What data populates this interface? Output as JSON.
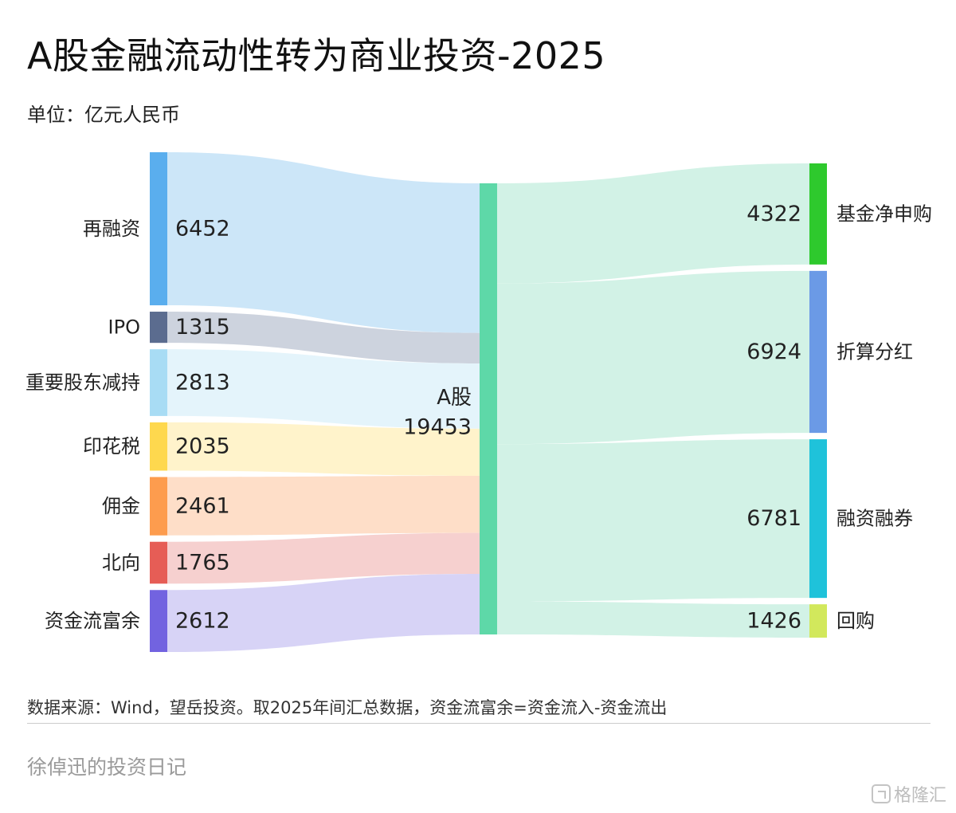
{
  "header": {
    "title": "A股金融流动性转为商业投资-2025",
    "unit": "单位：亿元人民币"
  },
  "footer": {
    "source": "数据来源：Wind，望岳投资。取2025年间汇总数据，资金流富余=资金流入-资金流出",
    "author": "徐倬迅的投资日记",
    "watermark": "格隆汇"
  },
  "chart_data": {
    "type": "sankey",
    "center": {
      "name": "A股",
      "value": 19453,
      "color": "#5ed8a8"
    },
    "sources": [
      {
        "name": "再融资",
        "value": 6452,
        "color": "#5aaeee",
        "flow": "#cce6f8"
      },
      {
        "name": "IPO",
        "value": 1315,
        "color": "#5b6c8f",
        "flow": "#cdd3de"
      },
      {
        "name": "重要股东减持",
        "value": 2813,
        "color": "#a8dcf4",
        "flow": "#e4f4fb"
      },
      {
        "name": "印花税",
        "value": 2035,
        "color": "#fed84e",
        "flow": "#fff3cb"
      },
      {
        "name": "佣金",
        "value": 2461,
        "color": "#fd9c4e",
        "flow": "#fedec8"
      },
      {
        "name": "北向",
        "value": 1765,
        "color": "#e65d56",
        "flow": "#f6d0cf"
      },
      {
        "name": "资金流富余",
        "value": 2612,
        "color": "#7263e0",
        "flow": "#d7d3f6"
      }
    ],
    "targets": [
      {
        "name": "基金净申购",
        "value": 4322,
        "color": "#2ec92d",
        "flow": "#d2f2e6"
      },
      {
        "name": "折算分红",
        "value": 6924,
        "color": "#6b9ae6",
        "flow": "#d2f2e6"
      },
      {
        "name": "融资融券",
        "value": 6781,
        "color": "#1fc2da",
        "flow": "#d2f2e6"
      },
      {
        "name": "回购",
        "value": 1426,
        "color": "#d2e85c",
        "flow": "#d2f2e6"
      }
    ]
  }
}
